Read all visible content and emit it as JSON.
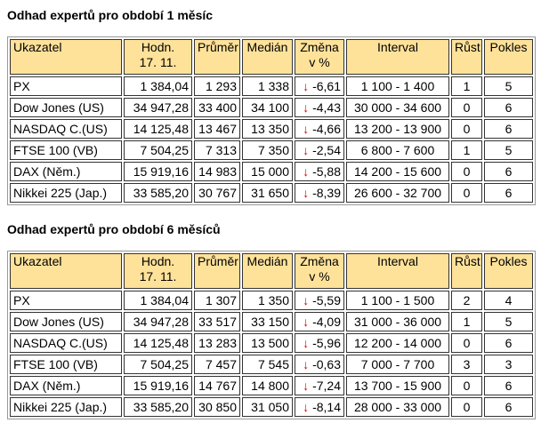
{
  "change_arrow": "↓",
  "sections": [
    {
      "title": "Odhad expertů pro období 1 měsíc",
      "table": {
        "header": [
          "Ukazatel",
          "Hodn.\n17. 11.",
          "Průměr",
          "Medián",
          "Změna\nv %",
          "Interval",
          "Růst",
          "Pokles"
        ],
        "rows": [
          [
            "PX",
            "1 384,04",
            "1 293",
            "1 338",
            "-6,61",
            "1 100 - 1 400",
            "1",
            "5"
          ],
          [
            "Dow Jones (US)",
            "34 947,28",
            "33 400",
            "34 100",
            "-4,43",
            "30 000 - 34 600",
            "0",
            "6"
          ],
          [
            "NASDAQ C.(US)",
            "14 125,48",
            "13 467",
            "13 350",
            "-4,66",
            "13 200 - 13 900",
            "0",
            "6"
          ],
          [
            "FTSE 100 (VB)",
            "7 504,25",
            "7 313",
            "7 350",
            "-2,54",
            "6 800 - 7 600",
            "1",
            "5"
          ],
          [
            "DAX (Něm.)",
            "15 919,16",
            "14 983",
            "15 000",
            "-5,88",
            "14 200 - 15 600",
            "0",
            "6"
          ],
          [
            "Nikkei 225 (Jap.)",
            "33 585,20",
            "30 767",
            "31 650",
            "-8,39",
            "26 600 - 32 700",
            "0",
            "6"
          ]
        ]
      }
    },
    {
      "title": "Odhad expertů pro období 6 měsíců",
      "table": {
        "header": [
          "Ukazatel",
          "Hodn.\n17. 11.",
          "Průměr",
          "Medián",
          "Změna\nv %",
          "Interval",
          "Růst",
          "Pokles"
        ],
        "rows": [
          [
            "PX",
            "1 384,04",
            "1 307",
            "1 350",
            "-5,59",
            "1 100 - 1 500",
            "2",
            "4"
          ],
          [
            "Dow Jones (US)",
            "34 947,28",
            "33 517",
            "33 150",
            "-4,09",
            "31 000 - 36 000",
            "1",
            "5"
          ],
          [
            "NASDAQ C.(US)",
            "14 125,48",
            "13 283",
            "13 500",
            "-5,96",
            "12 200 - 14 000",
            "0",
            "6"
          ],
          [
            "FTSE 100 (VB)",
            "7 504,25",
            "7 457",
            "7 545",
            "-0,63",
            "7 000 - 7 700",
            "3",
            "3"
          ],
          [
            "DAX (Něm.)",
            "15 919,16",
            "14 767",
            "14 800",
            "-7,24",
            "13 700 - 15 900",
            "0",
            "6"
          ],
          [
            "Nikkei 225 (Jap.)",
            "33 585,20",
            "30 850",
            "31 050",
            "-8,14",
            "28 000 - 33 000",
            "0",
            "6"
          ]
        ]
      }
    }
  ]
}
